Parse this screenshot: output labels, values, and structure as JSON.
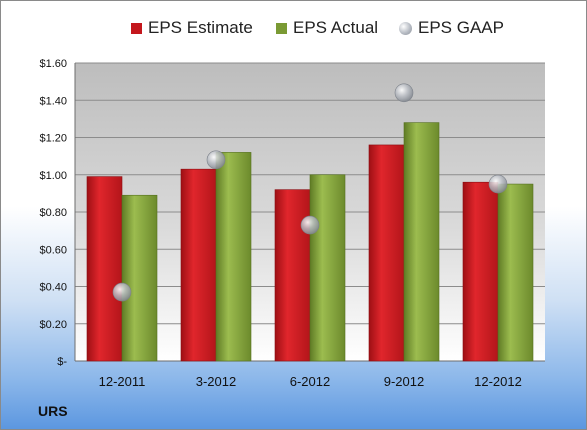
{
  "company": "URS",
  "colors": {
    "estimate": "#c4171d",
    "actual": "#7a9a34",
    "gaap": "#a9aeb6"
  },
  "chart_data": {
    "type": "bar",
    "categories": [
      "12-2011",
      "3-2012",
      "6-2012",
      "9-2012",
      "12-2012"
    ],
    "series": [
      {
        "name": "EPS Estimate",
        "values": [
          0.99,
          1.03,
          0.92,
          1.16,
          0.96
        ]
      },
      {
        "name": "EPS Actual",
        "values": [
          0.89,
          1.12,
          1.0,
          1.28,
          0.95
        ]
      },
      {
        "name": "EPS GAAP",
        "values": [
          0.37,
          1.08,
          0.73,
          1.44,
          0.95
        ],
        "marker": "bubble"
      }
    ],
    "yticks": [
      "$-",
      "$0.20",
      "$0.40",
      "$0.60",
      "$0.80",
      "$1.00",
      "$1.20",
      "$1.40",
      "$1.60"
    ],
    "ylim": [
      0,
      1.6
    ],
    "grid": true,
    "legend": "top"
  }
}
